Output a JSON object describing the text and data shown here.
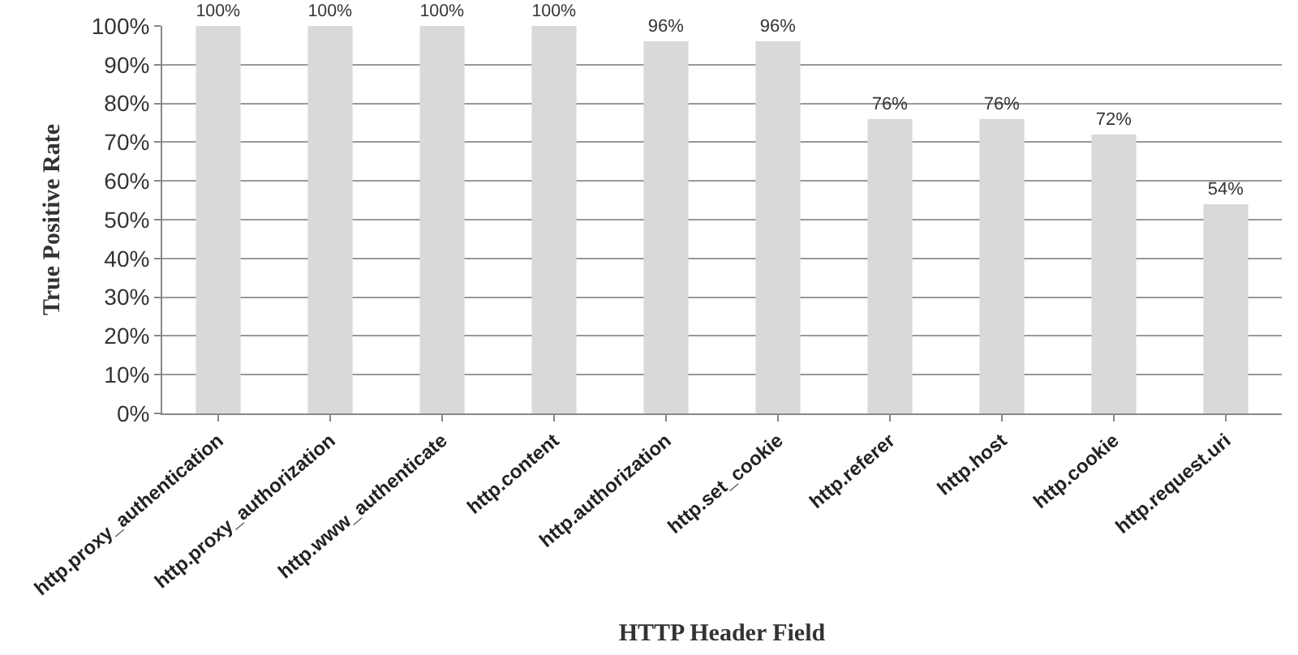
{
  "chart_data": {
    "type": "bar",
    "xlabel": "HTTP Header Field",
    "ylabel": "True Positive Rate",
    "categories": [
      "http.proxy_authentication",
      "http.proxy_authorization",
      "http.www_authenticate",
      "http.content",
      "http.authorization",
      "http.set_cookie",
      "http.referer",
      "http.host",
      "http.cookie",
      "http.request.uri"
    ],
    "values": [
      100,
      100,
      100,
      100,
      96,
      96,
      76,
      76,
      72,
      54
    ],
    "value_labels": [
      "100%",
      "100%",
      "100%",
      "100%",
      "96%",
      "96%",
      "76%",
      "76%",
      "72%",
      "54%"
    ],
    "color": "#d9d9d9",
    "ylim": [
      0,
      100
    ],
    "yticks": [
      {
        "value": 0,
        "label": "0%"
      },
      {
        "value": 10,
        "label": "10%"
      },
      {
        "value": 20,
        "label": "20%"
      },
      {
        "value": 30,
        "label": "30%"
      },
      {
        "value": 40,
        "label": "40%"
      },
      {
        "value": 50,
        "label": "50%"
      },
      {
        "value": 60,
        "label": "60%"
      },
      {
        "value": 70,
        "label": "70%"
      },
      {
        "value": 80,
        "label": "80%"
      },
      {
        "value": 90,
        "label": "90%"
      },
      {
        "value": 100,
        "label": "100%"
      }
    ],
    "grid": "y",
    "legend": false
  }
}
